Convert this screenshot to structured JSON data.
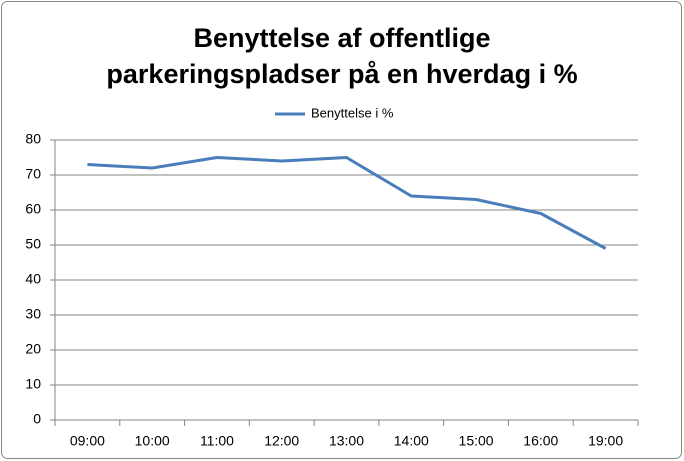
{
  "chart_data": {
    "type": "line",
    "title": [
      "Benyttelse af offentlige",
      "parkeringspladser på en hverdag i %"
    ],
    "categories": [
      "09:00",
      "10:00",
      "11:00",
      "12:00",
      "13:00",
      "14:00",
      "15:00",
      "16:00",
      "19:00"
    ],
    "series": [
      {
        "name": "Benyttelse i %",
        "color": "#4a7ebb",
        "values": [
          73,
          72,
          75,
          74,
          75,
          64,
          63,
          59,
          49
        ]
      }
    ],
    "ylim": [
      0,
      80
    ],
    "yticks": [
      0,
      10,
      20,
      30,
      40,
      50,
      60,
      70,
      80
    ],
    "grid": true,
    "legend": "top"
  }
}
